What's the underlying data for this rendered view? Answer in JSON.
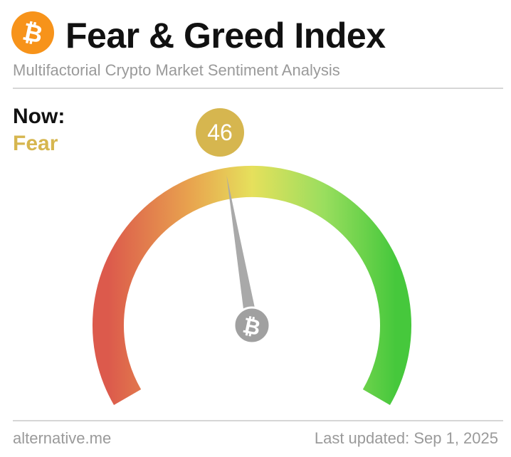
{
  "header": {
    "title": "Fear & Greed Index",
    "subtitle": "Multifactorial Crypto Market Sentiment Analysis",
    "logo_icon": "bitcoin-icon",
    "logo_glyph": "₿",
    "logo_color": "#f7931a"
  },
  "status": {
    "now_label": "Now:",
    "classification": "Fear",
    "classification_color": "#d6b64f"
  },
  "gauge": {
    "value": 46,
    "value_display": "46",
    "min": 0,
    "max": 100,
    "badge_color": "#d6b64f",
    "needle_color": "#a9a9a9",
    "hub_icon": "bitcoin-icon",
    "hub_glyph": "₿",
    "hub_color": "#a0a0a0",
    "gradient_colors": [
      "#dc5a4c",
      "#e8a24e",
      "#e6e05c",
      "#9ade5e",
      "#46c83c"
    ]
  },
  "footer": {
    "source": "alternative.me",
    "updated_label": "Last updated:",
    "updated_date": "Sep 1, 2025"
  }
}
